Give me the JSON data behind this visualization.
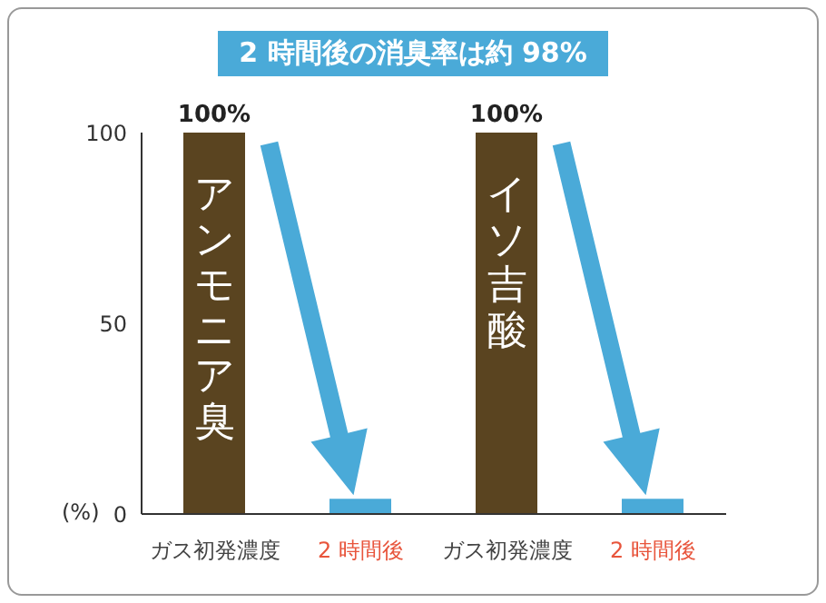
{
  "chart_data": {
    "type": "bar",
    "title": "2 時間後の消臭率は約 98%",
    "ylabel": "(%)",
    "categories": [
      "ガス初発濃度",
      "2 時間後",
      "ガス初発濃度",
      "2 時間後"
    ],
    "values": [
      100,
      4,
      100,
      4
    ],
    "colors": [
      "#5a4420",
      "#4aaad8",
      "#5a4420",
      "#4aaad8"
    ],
    "value_labels": [
      "100%",
      null,
      "100%",
      null
    ],
    "annotations": [
      "アンモニア臭",
      "イソ吉酸"
    ],
    "ylim": [
      0,
      100
    ],
    "yticks": [
      0,
      50,
      100
    ],
    "grid": false,
    "legend": false
  }
}
